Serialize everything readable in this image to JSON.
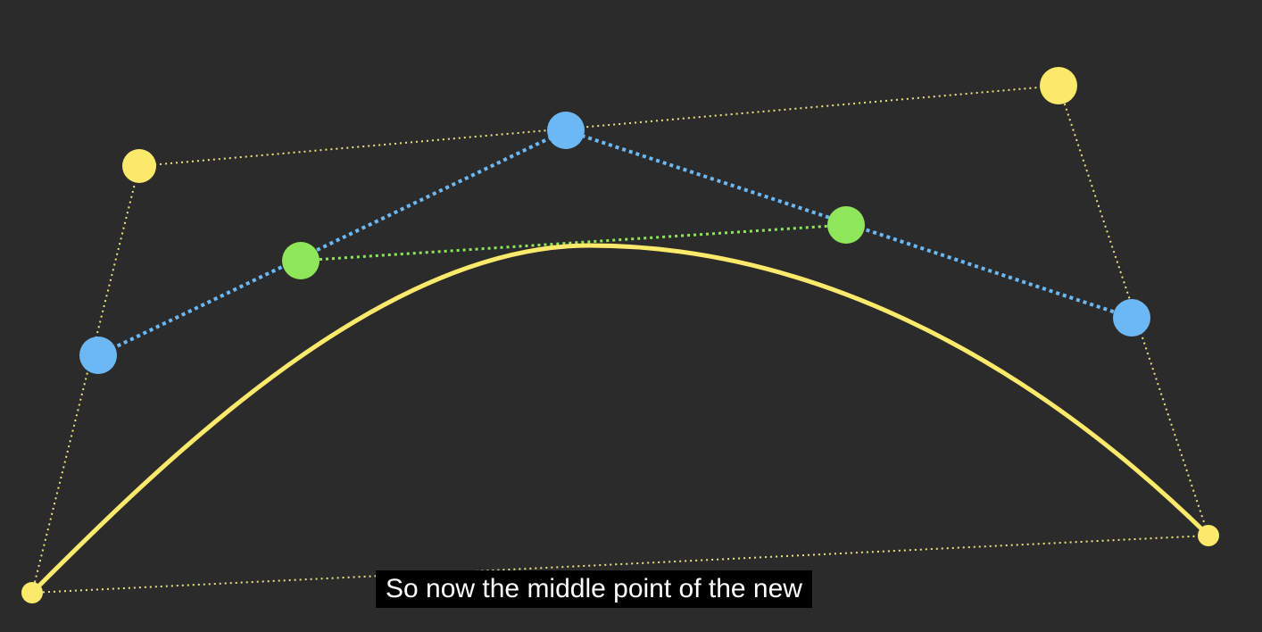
{
  "subtitle": "So now the middle point of the new",
  "colors": {
    "background": "#2b2b2b",
    "curve": "#fbe96b",
    "control_point": "#fbe96b",
    "control_polygon": "#e9e382",
    "first_level": "#6cb8f4",
    "second_level": "#8ee65a",
    "subtitle_bg": "#000000",
    "subtitle_text": "#ffffff"
  }
}
